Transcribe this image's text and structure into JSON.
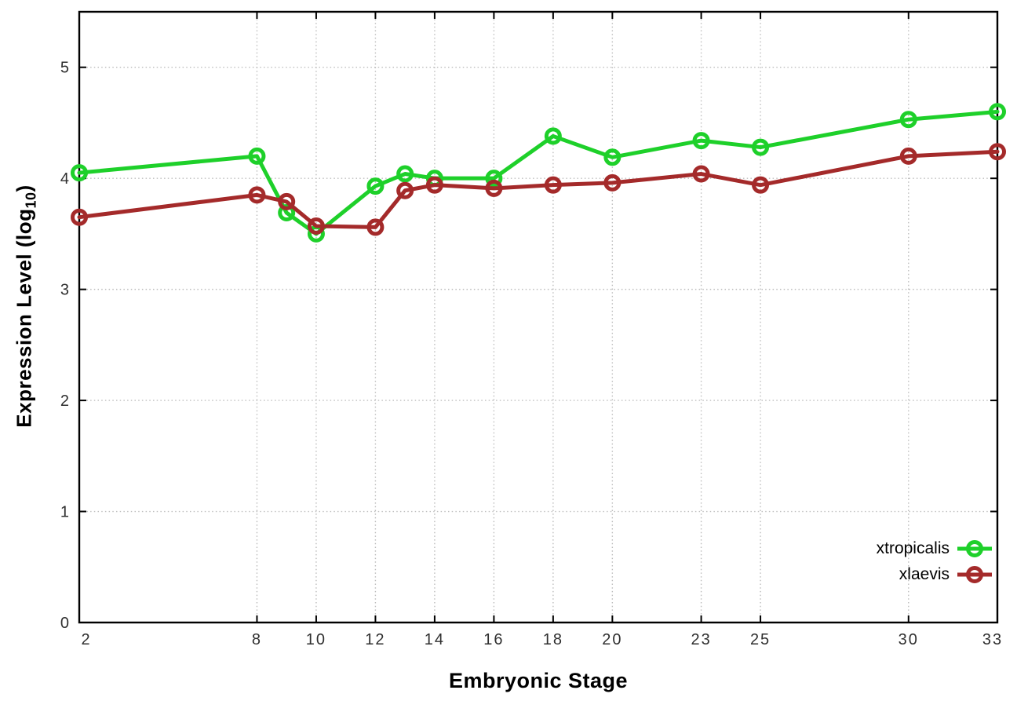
{
  "chart_data": {
    "type": "line",
    "title": "",
    "xlabel": "Embryonic Stage",
    "ylabel": {
      "part1": "Expression Level (log",
      "sub": "10",
      "part2": ")"
    },
    "x": [
      2,
      8,
      9,
      10,
      12,
      13,
      14,
      16,
      18,
      20,
      23,
      25,
      30,
      33
    ],
    "xticks": [
      2,
      8,
      10,
      12,
      14,
      16,
      18,
      20,
      23,
      25,
      30,
      33
    ],
    "yticks": [
      0,
      1,
      2,
      3,
      4,
      5
    ],
    "xlim": [
      2,
      33
    ],
    "ylim": [
      0,
      5.5
    ],
    "grid": true,
    "legend_position": "inside-bottom-right",
    "series": [
      {
        "name": "xtropicalis",
        "color": "#1ed02a",
        "values": [
          4.05,
          4.2,
          3.69,
          3.5,
          3.93,
          4.04,
          4.0,
          4.0,
          4.38,
          4.19,
          4.34,
          4.28,
          4.53,
          4.6
        ]
      },
      {
        "name": "xlaevis",
        "color": "#a42a2a",
        "values": [
          3.65,
          3.85,
          3.79,
          3.57,
          3.56,
          3.89,
          3.94,
          3.91,
          3.94,
          3.96,
          4.04,
          3.94,
          4.2,
          4.24
        ]
      }
    ],
    "style": {
      "grid_color": "#bdbdbd",
      "axis_color": "#000000",
      "tick_text_color": "#2f2f2f",
      "line_width": 5,
      "marker_radius": 8.5,
      "tick_font_size": 20
    }
  }
}
